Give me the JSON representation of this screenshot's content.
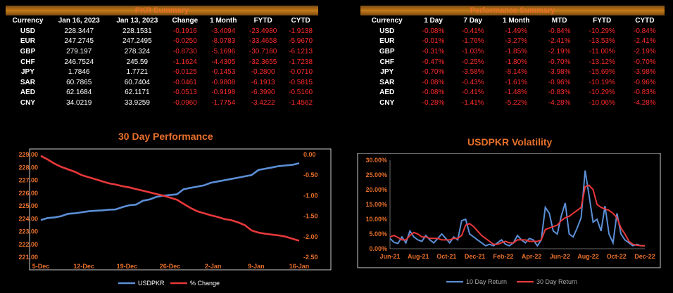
{
  "pkr_summary": {
    "title": "PKR Summary",
    "headers": [
      "Currency",
      "Jan 16, 2023",
      "Jan 13, 2023",
      "Change",
      "1 Month",
      "FYTD",
      "CYTD"
    ],
    "rows": [
      [
        "USD",
        "228.3447",
        "228.1531",
        "-0.1916",
        "-3.4094",
        "-23.4980",
        "-1.9138"
      ],
      [
        "EUR",
        "247.2745",
        "247.2495",
        "-0.0250",
        "-8.0783",
        "-33.4658",
        "-5.9670"
      ],
      [
        "GBP",
        "279.197",
        "278.324",
        "-0.8730",
        "-5.1696",
        "-30.7180",
        "-6.1213"
      ],
      [
        "CHF",
        "246.7524",
        "245.59",
        "-1.1624",
        "-4.4305",
        "-32.3655",
        "-1.7238"
      ],
      [
        "JPY",
        "1.7846",
        "1.7721",
        "-0.0125",
        "-0.1453",
        "-0.2800",
        "-0.0710"
      ],
      [
        "SAR",
        "60.7865",
        "60.7404",
        "-0.0461",
        "-0.9808",
        "-6.1913",
        "-0.5815"
      ],
      [
        "AED",
        "62.1684",
        "62.1171",
        "-0.0513",
        "-0.9198",
        "-6.3990",
        "-0.5160"
      ],
      [
        "CNY",
        "34.0219",
        "33.9259",
        "-0.0960",
        "-1.7754",
        "-3.4222",
        "-1.4562"
      ]
    ]
  },
  "performance_summary": {
    "title": "Performance Summary",
    "headers": [
      "Currency",
      "1 Day",
      "7 Day",
      "1 Month",
      "MTD",
      "FYTD",
      "CYTD"
    ],
    "rows": [
      [
        "USD",
        "-0.08%",
        "-0.41%",
        "-1.49%",
        "-0.84%",
        "-10.29%",
        "-0.84%"
      ],
      [
        "EUR",
        "-0.01%",
        "-1.76%",
        "-3.27%",
        "-2.41%",
        "-13.53%",
        "-2.41%"
      ],
      [
        "GBP",
        "-0.31%",
        "-1.03%",
        "-1.85%",
        "-2.19%",
        "-11.00%",
        "-2.19%"
      ],
      [
        "CHF",
        "-0.47%",
        "-0.25%",
        "-1.80%",
        "-0.70%",
        "-13.12%",
        "-0.70%"
      ],
      [
        "JPY",
        "-0.70%",
        "-3.58%",
        "-8.14%",
        "-3.98%",
        "-15.69%",
        "-3.98%"
      ],
      [
        "SAR",
        "-0.08%",
        "-0.43%",
        "-1.61%",
        "-0.96%",
        "-10.19%",
        "-0.96%"
      ],
      [
        "AED",
        "-0.08%",
        "-0.41%",
        "-1.48%",
        "-0.83%",
        "-10.29%",
        "-0.83%"
      ],
      [
        "CNY",
        "-0.28%",
        "-1.41%",
        "-5.22%",
        "-4.28%",
        "-10.06%",
        "-4.28%"
      ]
    ]
  },
  "colors": {
    "accent": "#e8702a",
    "negative": "#ff2a2a",
    "blue": "#5b8fd6",
    "red": "#e8383a"
  },
  "chart_data": [
    {
      "type": "line",
      "title": "30 Day Performance",
      "x_tick_labels": [
        "5-Dec",
        "12-Dec",
        "19-Dec",
        "26-Dec",
        "2-Jan",
        "9-Jan",
        "16-Jan"
      ],
      "y_left_ticks": [
        "229.00",
        "228.00",
        "227.00",
        "226.00",
        "225.00",
        "224.00",
        "223.00",
        "222.00",
        "221.00"
      ],
      "y_right_ticks": [
        "0.00",
        "-0.50",
        "-1.00",
        "-1.50",
        "-2.00",
        "-2.50"
      ],
      "ylim_left": [
        221,
        229
      ],
      "ylim_right": [
        -2.5,
        0
      ],
      "legend": "bottom",
      "series": [
        {
          "name": "USDPKR",
          "axis": "left",
          "color": "#5b8fd6",
          "values": [
            223.9,
            224.05,
            224.1,
            224.2,
            224.38,
            224.42,
            224.5,
            224.58,
            224.62,
            224.65,
            224.7,
            224.72,
            224.9,
            225.05,
            225.1,
            225.4,
            225.5,
            225.7,
            225.8,
            225.85,
            225.9,
            226.3,
            226.4,
            226.5,
            226.6,
            226.8,
            226.9,
            227.0,
            227.1,
            227.2,
            227.3,
            227.4,
            227.8,
            227.9,
            228.0,
            228.1,
            228.15,
            228.2,
            228.33
          ]
        },
        {
          "name": "% Change",
          "axis": "right",
          "color": "#e8383a",
          "values": [
            -0.03,
            -0.12,
            -0.22,
            -0.3,
            -0.36,
            -0.42,
            -0.5,
            -0.55,
            -0.6,
            -0.65,
            -0.7,
            -0.73,
            -0.77,
            -0.8,
            -0.84,
            -0.88,
            -0.92,
            -0.96,
            -1.0,
            -1.05,
            -1.1,
            -1.2,
            -1.3,
            -1.38,
            -1.43,
            -1.48,
            -1.52,
            -1.57,
            -1.6,
            -1.65,
            -1.72,
            -1.85,
            -1.9,
            -1.93,
            -1.95,
            -1.97,
            -2.0,
            -2.05,
            -2.1
          ]
        }
      ]
    },
    {
      "type": "line",
      "title": "USDPKR Volatility",
      "x_tick_labels": [
        "Jun-21",
        "Aug-21",
        "Oct-21",
        "Dec-21",
        "Feb-22",
        "Apr-22",
        "Jun-22",
        "Aug-22",
        "Oct-22",
        "Dec-22"
      ],
      "y_ticks": [
        "30.00%",
        "25.00%",
        "20.00%",
        "15.00%",
        "10.00%",
        "5.00%",
        "0.00%"
      ],
      "ylim": [
        0,
        30
      ],
      "legend": "bottom",
      "series": [
        {
          "name": "10 Day Return",
          "color": "#5b8fd6",
          "values": [
            3.5,
            2.2,
            1.8,
            4.0,
            2.0,
            6.0,
            4.0,
            3.0,
            2.5,
            4.5,
            3.0,
            2.0,
            3.5,
            5.0,
            3.5,
            2.0,
            4.0,
            3.0,
            9.5,
            10.0,
            5.0,
            4.0,
            3.0,
            2.0,
            1.0,
            1.5,
            1.0,
            2.0,
            3.0,
            1.5,
            1.0,
            2.0,
            4.5,
            3.0,
            2.0,
            3.5,
            3.0,
            1.0,
            3.0,
            14.0,
            12.0,
            6.0,
            5.0,
            11.0,
            15.5,
            5.0,
            4.0,
            7.0,
            10.5,
            26.5,
            18.0,
            9.0,
            10.0,
            6.0,
            14.5,
            5.0,
            2.0,
            12.0,
            5.0,
            3.0,
            2.0,
            1.0,
            1.5,
            1.0,
            1.0
          ]
        },
        {
          "name": "30 Day Return",
          "color": "#e8383a",
          "values": [
            4.0,
            4.5,
            3.8,
            3.0,
            3.0,
            4.5,
            5.5,
            5.0,
            4.0,
            4.0,
            3.5,
            3.5,
            3.5,
            3.0,
            3.0,
            3.0,
            3.5,
            3.5,
            4.5,
            8.0,
            8.5,
            7.5,
            6.0,
            4.5,
            3.5,
            2.5,
            1.5,
            1.5,
            2.0,
            2.5,
            2.0,
            2.0,
            3.0,
            3.0,
            3.0,
            2.5,
            2.5,
            2.5,
            3.0,
            6.5,
            7.0,
            7.5,
            8.0,
            9.5,
            10.5,
            11.0,
            12.0,
            13.0,
            14.0,
            21.0,
            21.5,
            20.0,
            15.0,
            14.0,
            13.5,
            13.0,
            12.0,
            10.5,
            7.0,
            5.0,
            2.5,
            1.5,
            1.2,
            1.0,
            1.0
          ]
        }
      ]
    }
  ]
}
